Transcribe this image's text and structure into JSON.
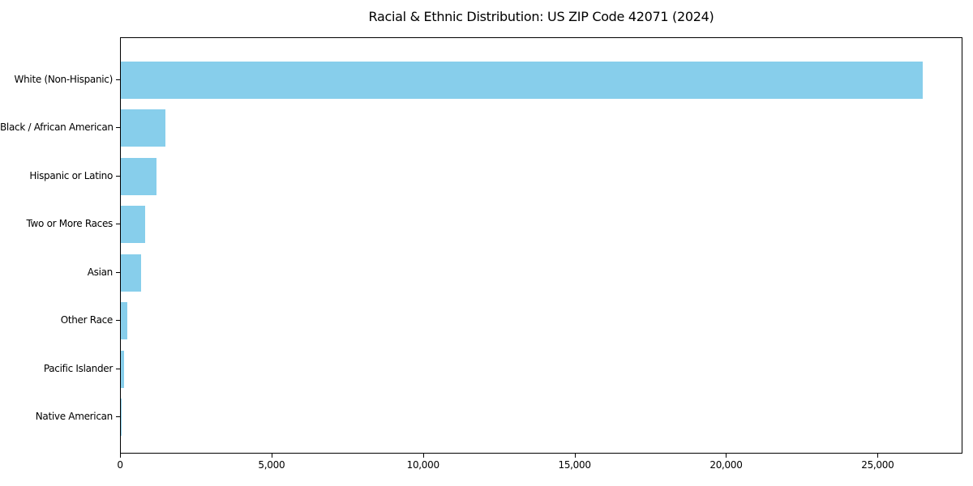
{
  "title": "Racial & Ethnic Distribution: US ZIP Code 42071 (2024)",
  "chart_data": {
    "type": "bar",
    "orientation": "horizontal",
    "title": "Racial & Ethnic Distribution: US ZIP Code 42071 (2024)",
    "categories": [
      "White (Non-Hispanic)",
      "Black / African American",
      "Hispanic or Latino",
      "Two or More Races",
      "Asian",
      "Other Race",
      "Pacific Islander",
      "Native American"
    ],
    "values": [
      26450,
      1470,
      1190,
      800,
      670,
      215,
      110,
      25
    ],
    "xlabel": "",
    "ylabel": "",
    "xlim": [
      0,
      27800
    ],
    "xticks": [
      {
        "value": 0,
        "label": "0"
      },
      {
        "value": 5000,
        "label": "5,000"
      },
      {
        "value": 10000,
        "label": "10,000"
      },
      {
        "value": 15000,
        "label": "15,000"
      },
      {
        "value": 20000,
        "label": "20,000"
      },
      {
        "value": 25000,
        "label": "25,000"
      }
    ],
    "bar_color": "#87CEEB",
    "axis_color": "#000000",
    "grid": false,
    "legend": null
  }
}
